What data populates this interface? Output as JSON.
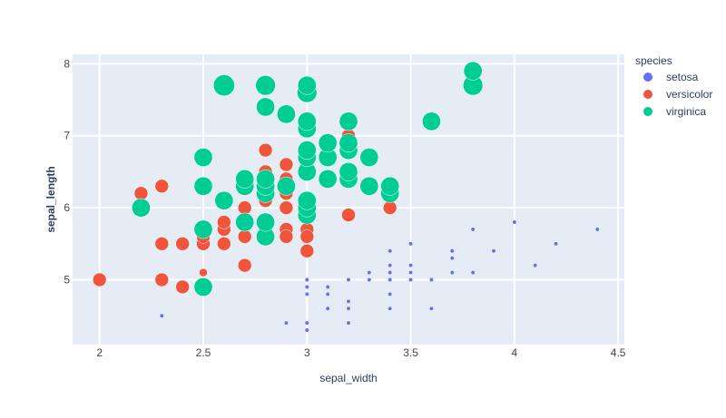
{
  "chart_data": {
    "type": "scatter",
    "xlabel": "sepal_width",
    "ylabel": "sepal_length",
    "xlim": [
      1.87,
      4.53
    ],
    "ylim": [
      4.1,
      8.13
    ],
    "x_ticks": [
      2,
      2.5,
      3,
      3.5,
      4,
      4.5
    ],
    "x_tick_labels": [
      "2",
      "2.5",
      "3",
      "3.5",
      "4",
      "4.5"
    ],
    "y_ticks": [
      5,
      6,
      7,
      8
    ],
    "y_tick_labels": [
      "5",
      "6",
      "7",
      "8"
    ],
    "grid": true,
    "legend": {
      "title": "species",
      "placement": "right"
    },
    "series": [
      {
        "name": "setosa",
        "color": "#636efa",
        "points": [
          [
            2.3,
            4.5
          ],
          [
            2.9,
            4.4
          ],
          [
            3.0,
            4.4
          ],
          [
            3.0,
            4.3
          ],
          [
            3.2,
            4.4
          ],
          [
            3.0,
            4.8
          ],
          [
            3.0,
            4.9
          ],
          [
            3.0,
            5.0
          ],
          [
            3.1,
            4.8
          ],
          [
            3.1,
            4.9
          ],
          [
            3.1,
            4.6
          ],
          [
            3.2,
            4.7
          ],
          [
            3.2,
            4.6
          ],
          [
            3.2,
            5.0
          ],
          [
            3.3,
            5.0
          ],
          [
            3.3,
            5.1
          ],
          [
            3.4,
            4.6
          ],
          [
            3.4,
            4.8
          ],
          [
            3.4,
            5.0
          ],
          [
            3.4,
            5.1
          ],
          [
            3.4,
            5.2
          ],
          [
            3.4,
            5.4
          ],
          [
            3.5,
            5.0
          ],
          [
            3.5,
            5.1
          ],
          [
            3.5,
            5.2
          ],
          [
            3.5,
            5.5
          ],
          [
            3.6,
            4.6
          ],
          [
            3.6,
            5.0
          ],
          [
            3.7,
            5.1
          ],
          [
            3.7,
            5.3
          ],
          [
            3.7,
            5.4
          ],
          [
            3.8,
            5.1
          ],
          [
            3.8,
            5.7
          ],
          [
            3.9,
            5.4
          ],
          [
            4.0,
            5.8
          ],
          [
            4.1,
            5.2
          ],
          [
            4.2,
            5.5
          ],
          [
            4.4,
            5.7
          ]
        ],
        "sizes": [
          0.3,
          0.3,
          0.3,
          0.3,
          0.3,
          0.3,
          0.3,
          0.3,
          0.3,
          0.3,
          0.3,
          0.3,
          0.3,
          0.3,
          0.3,
          0.3,
          0.3,
          0.3,
          0.3,
          0.3,
          0.3,
          0.3,
          0.3,
          0.3,
          0.3,
          0.3,
          0.3,
          0.3,
          0.3,
          0.3,
          0.3,
          0.3,
          0.3,
          0.3,
          0.3,
          0.3,
          0.3,
          0.3
        ]
      },
      {
        "name": "versicolor",
        "color": "#ef553b",
        "points": [
          [
            2.0,
            5.0
          ],
          [
            2.2,
            6.2
          ],
          [
            2.3,
            6.3
          ],
          [
            2.3,
            5.5
          ],
          [
            2.3,
            5.0
          ],
          [
            2.4,
            5.5
          ],
          [
            2.4,
            4.9
          ],
          [
            2.5,
            5.5
          ],
          [
            2.5,
            5.6
          ],
          [
            2.5,
            5.1
          ],
          [
            2.6,
            5.5
          ],
          [
            2.6,
            5.7
          ],
          [
            2.6,
            5.8
          ],
          [
            2.7,
            5.2
          ],
          [
            2.7,
            5.6
          ],
          [
            2.7,
            5.8
          ],
          [
            2.7,
            6.0
          ],
          [
            2.8,
            6.8
          ],
          [
            2.8,
            6.5
          ],
          [
            2.8,
            6.1
          ],
          [
            2.8,
            5.7
          ],
          [
            2.9,
            6.6
          ],
          [
            2.9,
            6.4
          ],
          [
            2.9,
            6.2
          ],
          [
            2.9,
            6.0
          ],
          [
            2.9,
            5.7
          ],
          [
            2.9,
            5.6
          ],
          [
            3.0,
            6.7
          ],
          [
            3.0,
            6.6
          ],
          [
            3.0,
            5.9
          ],
          [
            3.0,
            5.7
          ],
          [
            3.0,
            5.6
          ],
          [
            3.0,
            5.4
          ],
          [
            3.1,
            6.9
          ],
          [
            3.1,
            6.7
          ],
          [
            3.2,
            7.0
          ],
          [
            3.2,
            6.4
          ],
          [
            3.2,
            5.9
          ],
          [
            3.3,
            6.3
          ],
          [
            3.4,
            6.0
          ]
        ],
        "sizes": [
          1.0,
          1.0,
          1.0,
          1.0,
          1.0,
          1.0,
          1.0,
          1.0,
          1.0,
          0.6,
          1.0,
          1.0,
          1.0,
          1.0,
          1.0,
          1.0,
          1.0,
          1.0,
          1.0,
          1.0,
          1.0,
          1.0,
          1.0,
          1.0,
          1.0,
          1.0,
          1.0,
          1.0,
          1.0,
          1.0,
          1.0,
          1.0,
          1.0,
          1.0,
          1.0,
          1.0,
          1.0,
          1.0,
          1.0,
          1.0
        ]
      },
      {
        "name": "virginica",
        "color": "#00cc96",
        "points": [
          [
            2.2,
            6.0
          ],
          [
            2.5,
            4.9
          ],
          [
            2.5,
            5.7
          ],
          [
            2.5,
            6.3
          ],
          [
            2.5,
            6.7
          ],
          [
            2.6,
            6.1
          ],
          [
            2.6,
            7.7
          ],
          [
            2.7,
            5.8
          ],
          [
            2.7,
            6.3
          ],
          [
            2.7,
            6.4
          ],
          [
            2.8,
            5.6
          ],
          [
            2.8,
            5.8
          ],
          [
            2.8,
            6.2
          ],
          [
            2.8,
            6.3
          ],
          [
            2.8,
            6.4
          ],
          [
            2.8,
            7.4
          ],
          [
            2.8,
            7.7
          ],
          [
            2.9,
            6.3
          ],
          [
            2.9,
            7.3
          ],
          [
            3.0,
            5.9
          ],
          [
            3.0,
            6.0
          ],
          [
            3.0,
            6.1
          ],
          [
            3.0,
            6.5
          ],
          [
            3.0,
            6.7
          ],
          [
            3.0,
            6.8
          ],
          [
            3.0,
            7.1
          ],
          [
            3.0,
            7.2
          ],
          [
            3.0,
            7.6
          ],
          [
            3.0,
            7.7
          ],
          [
            3.1,
            6.4
          ],
          [
            3.1,
            6.7
          ],
          [
            3.1,
            6.9
          ],
          [
            3.2,
            6.4
          ],
          [
            3.2,
            6.5
          ],
          [
            3.2,
            6.8
          ],
          [
            3.2,
            6.9
          ],
          [
            3.2,
            7.2
          ],
          [
            3.3,
            6.3
          ],
          [
            3.3,
            6.7
          ],
          [
            3.4,
            6.2
          ],
          [
            3.4,
            6.3
          ],
          [
            3.6,
            7.2
          ],
          [
            3.8,
            7.7
          ],
          [
            3.8,
            7.9
          ]
        ],
        "sizes": [
          1.35,
          1.35,
          1.35,
          1.35,
          1.35,
          1.35,
          1.55,
          1.35,
          1.35,
          1.35,
          1.35,
          1.35,
          1.35,
          1.35,
          1.35,
          1.35,
          1.45,
          1.35,
          1.35,
          1.35,
          1.35,
          1.35,
          1.35,
          1.35,
          1.35,
          1.35,
          1.35,
          1.45,
          1.35,
          1.35,
          1.35,
          1.35,
          1.35,
          1.35,
          1.35,
          1.35,
          1.35,
          1.35,
          1.35,
          1.35,
          1.35,
          1.35,
          1.45,
          1.35
        ]
      }
    ]
  }
}
